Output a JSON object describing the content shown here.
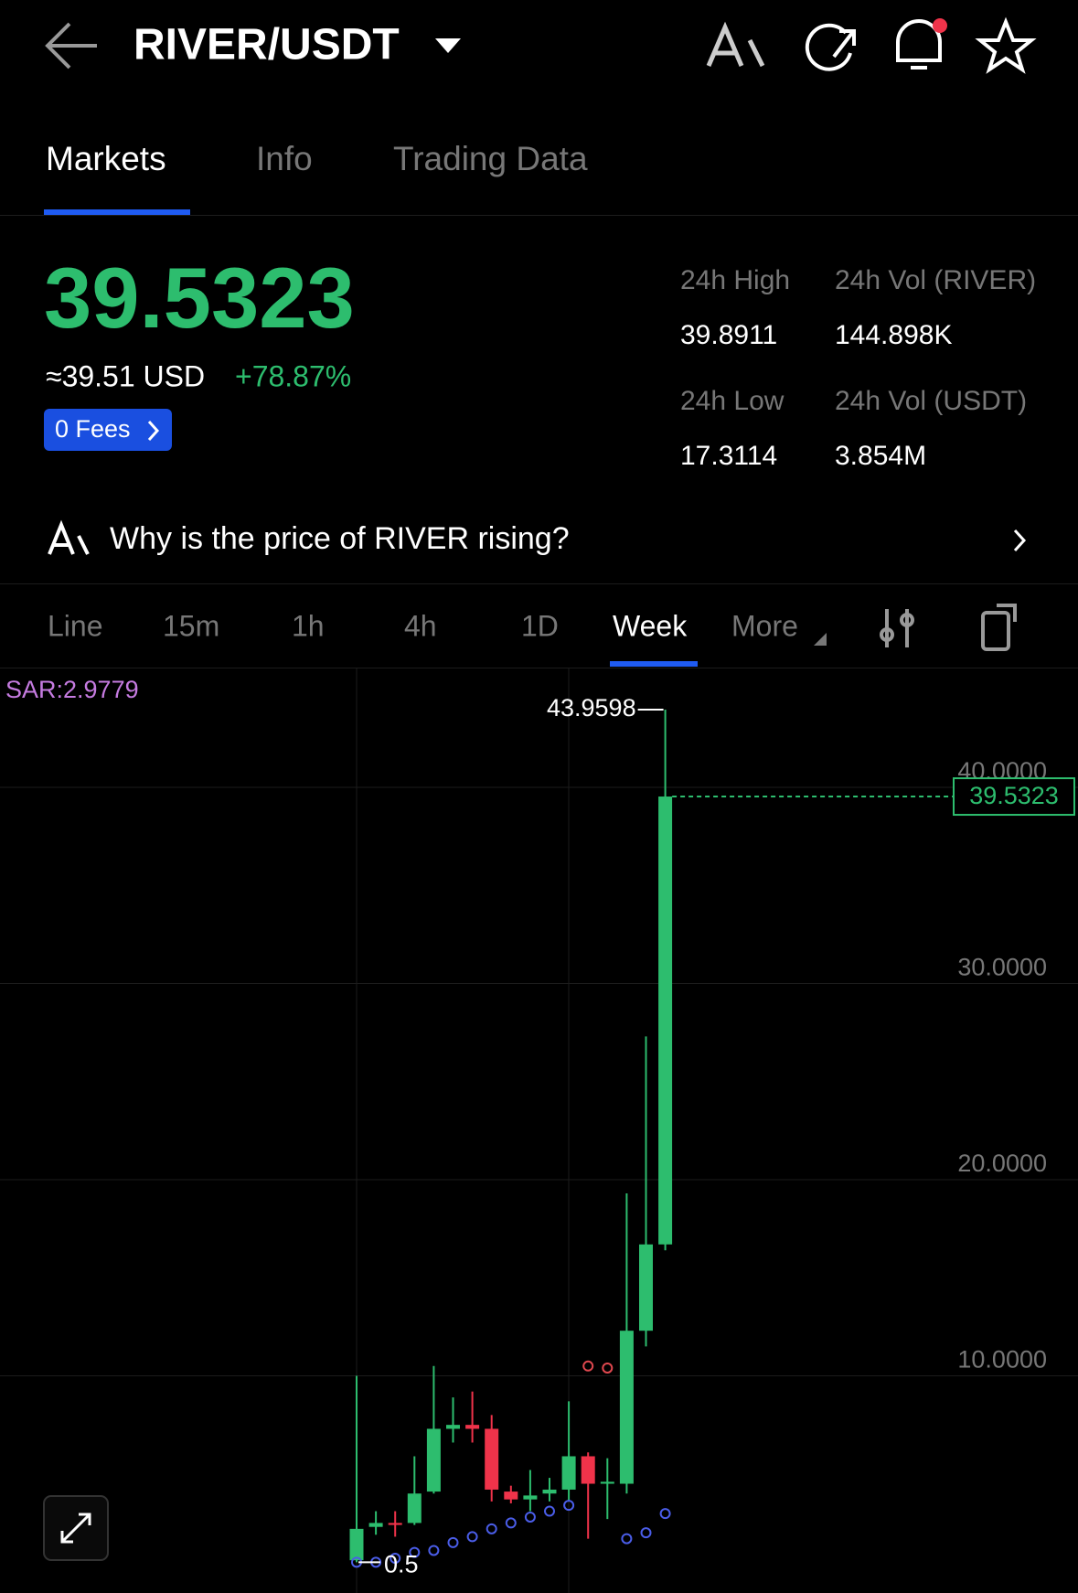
{
  "header": {
    "title": "RIVER/USDT"
  },
  "tabs": [
    "Markets",
    "Info",
    "Trading Data"
  ],
  "price": {
    "usd": "≈39.51 USD",
    "change": "+78.87%",
    "fees": "0 Fees"
  },
  "stats": [
    {
      "label": "24h High",
      "value": "39.8911"
    },
    {
      "label": "24h Vol (RIVER)",
      "value": "144.898K"
    },
    {
      "label": "24h Low",
      "value": "17.3114"
    },
    {
      "label": "24h Vol  (USDT)",
      "value": "3.854M"
    }
  ],
  "ai_prompt": "Why is the price of RIVER rising?",
  "intervals": [
    "Line",
    "15m",
    "1h",
    "4h",
    "1D",
    "Week",
    "More"
  ],
  "chart_data": {
    "type": "candlestick",
    "open": [
      0.6,
      2.3,
      2.5,
      2.5,
      4.1,
      7.3,
      7.5,
      7.3,
      4.1,
      3.7,
      4.0,
      4.2,
      5.9,
      4.5,
      4.5,
      12.3,
      16.7
    ],
    "high": [
      10.0,
      3.1,
      3.1,
      5.9,
      10.5,
      8.9,
      9.2,
      8.0,
      4.4,
      5.2,
      4.8,
      8.7,
      6.1,
      5.8,
      19.3,
      27.3,
      43.9598
    ],
    "low": [
      0.5,
      1.9,
      1.8,
      2.4,
      4.0,
      6.6,
      6.6,
      3.6,
      3.5,
      3.1,
      3.6,
      3.6,
      1.7,
      2.7,
      4.0,
      11.5,
      16.4
    ],
    "close": [
      2.2,
      2.5,
      2.4,
      4.0,
      7.3,
      7.5,
      7.3,
      4.2,
      3.7,
      3.9,
      4.2,
      5.9,
      4.5,
      4.6,
      12.3,
      16.7,
      39.5323
    ],
    "up_color": "#2dbd6e",
    "down_color": "#f0334a",
    "sar": [
      0.5,
      0.5,
      0.7,
      1.0,
      1.1,
      1.5,
      1.8,
      2.2,
      2.5,
      2.8,
      3.1,
      3.4,
      10.5,
      10.4,
      1.7,
      2.0,
      2.9779
    ],
    "sar_label": "SAR:2.9779",
    "sar_below_color": "#4a5de8",
    "sar_above_color": "#e0484f",
    "ylim": [
      -1.07,
      46.06
    ],
    "yticks": [
      {
        "value": 10,
        "label": "10.0000"
      },
      {
        "value": 20,
        "label": "20.0000"
      },
      {
        "value": 30,
        "label": "30.0000"
      },
      {
        "value": 40,
        "label": "40.0000"
      }
    ],
    "grid": true
  }
}
